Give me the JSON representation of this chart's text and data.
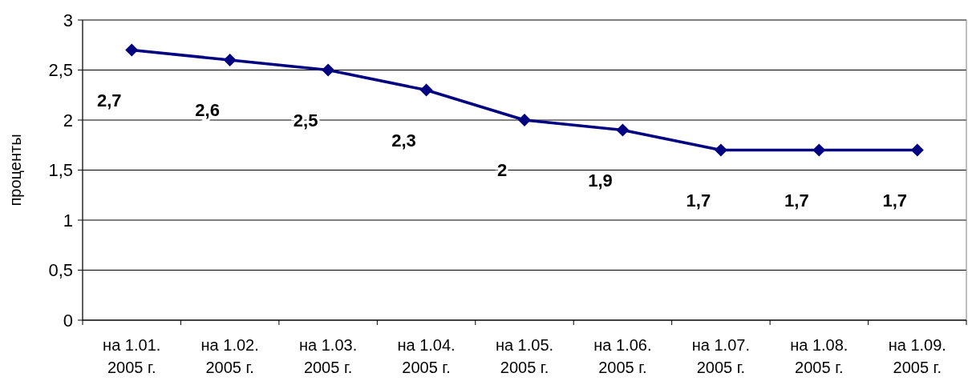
{
  "chart_data": {
    "type": "line",
    "ylabel": "проценты",
    "categories": [
      "на 1.01.\n2005 г.",
      "на 1.02.\n2005 г.",
      "на 1.03.\n2005 г.",
      "на 1.04.\n2005 г.",
      "на 1.05.\n2005 г.",
      "на 1.06.\n2005 г.",
      "на 1.07.\n2005 г.",
      "на 1.08.\n2005 г.",
      "на 1.09.\n2005 г."
    ],
    "series": [
      {
        "color": "#000080",
        "values": [
          2.7,
          2.6,
          2.5,
          2.3,
          2,
          1.9,
          1.7,
          1.7,
          1.7
        ],
        "value_labels": [
          "2,7",
          "2,6",
          "2,5",
          "2,3",
          "2",
          "1,9",
          "1,7",
          "1,7",
          "1,7"
        ]
      }
    ],
    "ylim": [
      0,
      3
    ],
    "yticks": [
      0,
      {
        "value": 0.5,
        "label": "0,5"
      },
      1,
      {
        "value": 1.5,
        "label": "1,5"
      },
      2,
      {
        "value": 2.5,
        "label": "2,5"
      },
      3
    ],
    "grid": "y",
    "marker": "diamond",
    "line_style": "solid"
  }
}
